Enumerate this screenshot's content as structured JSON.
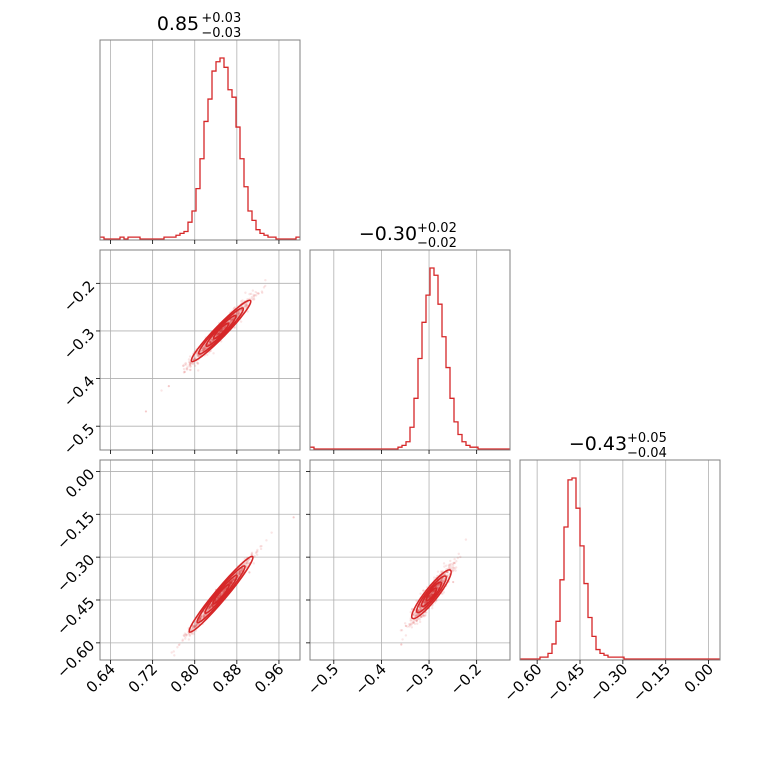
{
  "chart_data": {
    "type": "corner",
    "color": "#d62728",
    "grid": true,
    "parameters": [
      {
        "title": {
          "median": "0.85",
          "plus": "+0.03",
          "minus": "−0.03"
        },
        "range": [
          0.62,
          1.0
        ],
        "ticks": [
          0.64,
          0.72,
          0.8,
          0.88,
          0.96
        ],
        "tick_labels": [
          "0.64",
          "0.72",
          "0.80",
          "0.88",
          "0.96"
        ],
        "hist_edges_range": [
          0.62,
          1.0
        ],
        "hist_counts": [
          1,
          0,
          0,
          0,
          0,
          1,
          0,
          1,
          1,
          1,
          0,
          0,
          0,
          0,
          0,
          0,
          1,
          1,
          1,
          2,
          3,
          4,
          9,
          15,
          27,
          43,
          63,
          75,
          90,
          95,
          97,
          92,
          80,
          76,
          60,
          43,
          28,
          15,
          10,
          5,
          3,
          2,
          1,
          1,
          0,
          0,
          0,
          0,
          0,
          1
        ]
      },
      {
        "title": {
          "median": "−0.30",
          "plus": "+0.02",
          "minus": "−0.02"
        },
        "range": [
          -0.55,
          -0.13
        ],
        "ticks": [
          -0.5,
          -0.4,
          -0.3,
          -0.2
        ],
        "tick_labels": [
          "−0.5",
          "−0.4",
          "−0.3",
          "−0.2"
        ],
        "hist_edges_range": [
          -0.55,
          -0.13
        ],
        "hist_counts": [
          1,
          0,
          0,
          0,
          0,
          0,
          0,
          0,
          0,
          0,
          0,
          0,
          0,
          0,
          0,
          0,
          0,
          0,
          0,
          0,
          0,
          0,
          1,
          2,
          4,
          12,
          28,
          50,
          70,
          85,
          100,
          96,
          80,
          62,
          45,
          28,
          15,
          8,
          4,
          2,
          1,
          1,
          0,
          0,
          0,
          0,
          0,
          0,
          0,
          0
        ]
      },
      {
        "title": {
          "median": "−0.43",
          "plus": "+0.05",
          "minus": "−0.04"
        },
        "range": [
          -0.66,
          0.04
        ],
        "ticks": [
          -0.6,
          -0.45,
          -0.3,
          -0.15,
          0.0
        ],
        "tick_labels": [
          "−0.60",
          "−0.45",
          "−0.30",
          "−0.15",
          "0.00"
        ],
        "hist_edges_range": [
          -0.66,
          0.04
        ],
        "hist_counts": [
          0,
          0,
          0,
          0,
          0,
          1,
          1,
          3,
          8,
          20,
          42,
          70,
          95,
          96,
          80,
          60,
          40,
          22,
          12,
          5,
          3,
          2,
          1,
          1,
          1,
          1,
          0,
          0,
          0,
          0,
          0,
          0,
          0,
          0,
          0,
          0,
          0,
          0,
          0,
          0,
          0,
          0,
          0,
          0,
          0,
          0,
          0,
          0,
          0,
          0
        ]
      }
    ],
    "pairs": [
      {
        "row": 1,
        "col": 0,
        "slope": 1.14,
        "x_mean": 0.85,
        "x_sd": 0.028,
        "y_mean": -0.3,
        "perp_sd": 0.008
      },
      {
        "row": 2,
        "col": 0,
        "slope": 2.2,
        "x_mean": 0.85,
        "x_sd": 0.03,
        "y_mean": -0.43,
        "perp_sd": 0.01
      },
      {
        "row": 2,
        "col": 1,
        "slope": 2.1,
        "x_mean": -0.295,
        "x_sd": 0.02,
        "y_mean": -0.43,
        "perp_sd": 0.018
      }
    ]
  }
}
